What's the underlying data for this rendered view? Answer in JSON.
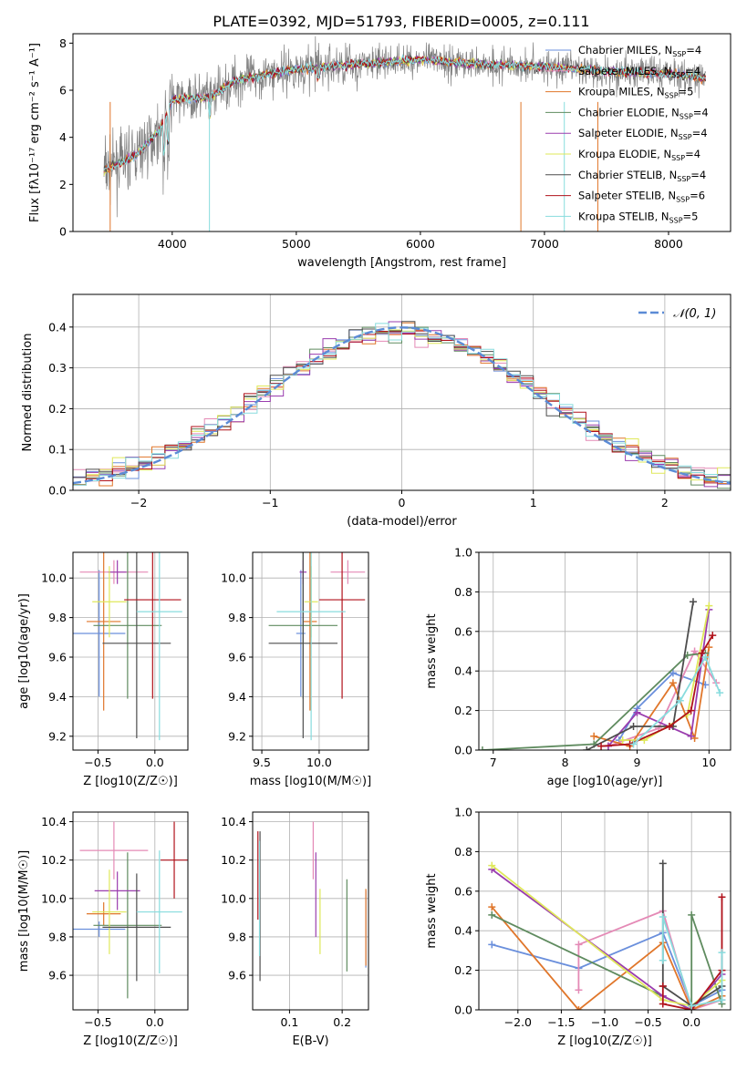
{
  "palette": {
    "Chabrier MILES": "#6a8fdc",
    "Salpeter MILES": "#e48ab6",
    "Kroupa MILES": "#e0762a",
    "Chabrier ELODIE": "#5f8b5f",
    "Salpeter ELODIE": "#9a3dae",
    "Kroupa ELODIE": "#dfe85a",
    "Chabrier STELIB": "#4d4d4d",
    "Salpeter STELIB": "#b0121b",
    "Kroupa STELIB": "#88dcde",
    "data_gray": "#808080",
    "normal_curve": "#5b8bd6"
  },
  "chart_data": [
    {
      "id": "spectrum",
      "type": "line",
      "title": "PLATE=0392, MJD=51793, FIBERID=0005, z=0.111",
      "xlabel": "wavelength [Angstrom, rest frame]",
      "ylabel": "Flux [fλ10⁻¹⁷ erg cm⁻² s⁻¹ A⁻¹]",
      "xlim": [
        3200,
        8500
      ],
      "ylim": [
        0,
        8.4
      ],
      "xticks": [
        4000,
        5000,
        6000,
        7000,
        8000
      ],
      "yticks": [
        0,
        2,
        4,
        6,
        8
      ],
      "x_range_data": [
        3450,
        8300
      ],
      "continuum": [
        [
          3450,
          2.6
        ],
        [
          3700,
          3.2
        ],
        [
          3900,
          4.3
        ],
        [
          4000,
          5.6
        ],
        [
          4300,
          5.7
        ],
        [
          4500,
          6.4
        ],
        [
          5000,
          6.9
        ],
        [
          5500,
          7.1
        ],
        [
          6000,
          7.3
        ],
        [
          6500,
          7.1
        ],
        [
          7000,
          7.0
        ],
        [
          7500,
          6.8
        ],
        [
          8000,
          6.7
        ],
        [
          8300,
          6.5
        ]
      ],
      "legend": [
        "Chabrier MILES, N_SSP=4",
        "Salpeter MILES, N_SSP=4",
        "Kroupa MILES, N_SSP=5",
        "Chabrier ELODIE, N_SSP=4",
        "Salpeter ELODIE, N_SSP=4",
        "Kroupa ELODIE, N_SSP=4",
        "Chabrier STELIB, N_SSP=4",
        "Salpeter STELIB, N_SSP=6",
        "Kroupa STELIB, N_SSP=5"
      ],
      "legend_placement": "upper right",
      "grid": false
    },
    {
      "id": "residuals",
      "type": "area",
      "xlabel": "(data-model)/error",
      "ylabel": "Normed distribution",
      "xlim": [
        -2.5,
        2.5
      ],
      "ylim": [
        0,
        0.48
      ],
      "xticks": [
        -2,
        -1,
        0,
        1,
        2
      ],
      "yticks": [
        0.0,
        0.1,
        0.2,
        0.3,
        0.4
      ],
      "bin_width": 0.1,
      "legend": [
        "𝒩(0, 1)"
      ],
      "legend_placement": "upper right",
      "grid": true
    },
    {
      "id": "age_vs_Z",
      "type": "scatter",
      "xlabel": "Z [log10(Z/Z☉)]",
      "ylabel": "age  [log10(age/yr)]",
      "xlim": [
        -0.72,
        0.29
      ],
      "ylim": [
        9.13,
        10.13
      ],
      "xticks": [
        -0.5,
        0.0
      ],
      "yticks": [
        9.2,
        9.4,
        9.6,
        9.8,
        10.0
      ],
      "points": [
        {
          "model": "Chabrier MILES",
          "x": -0.49,
          "y": 9.72,
          "xerr": 0.23,
          "yerr": 0.32
        },
        {
          "model": "Salpeter MILES",
          "x": -0.36,
          "y": 10.03,
          "xerr": 0.3,
          "yerr": 0.06
        },
        {
          "model": "Kroupa MILES",
          "x": -0.45,
          "y": 9.78,
          "xerr": 0.15,
          "yerr": 0.45
        },
        {
          "model": "Chabrier ELODIE",
          "x": -0.24,
          "y": 9.76,
          "xerr": 0.3,
          "yerr": 0.37
        },
        {
          "model": "Salpeter ELODIE",
          "x": -0.33,
          "y": 10.03,
          "xerr": 0.08,
          "yerr": 0.06
        },
        {
          "model": "Kroupa ELODIE",
          "x": -0.4,
          "y": 9.88,
          "xerr": 0.15,
          "yerr": 0.18
        },
        {
          "model": "Chabrier STELIB",
          "x": -0.16,
          "y": 9.67,
          "xerr": 0.3,
          "yerr": 0.48
        },
        {
          "model": "Salpeter STELIB",
          "x": -0.02,
          "y": 9.89,
          "xerr": 0.25,
          "yerr": 0.5
        },
        {
          "model": "Kroupa STELIB",
          "x": 0.04,
          "y": 9.83,
          "xerr": 0.2,
          "yerr": 0.65
        }
      ],
      "grid": true
    },
    {
      "id": "age_vs_mass",
      "type": "scatter",
      "xlabel": "mass [log10(M/M☉)]",
      "ylabel": "",
      "xlim": [
        9.42,
        10.43
      ],
      "ylim": [
        9.13,
        10.13
      ],
      "xticks": [
        9.5,
        10.0
      ],
      "yticks": [
        9.2,
        9.4,
        9.6,
        9.8,
        10.0
      ],
      "points": [
        {
          "model": "Chabrier MILES",
          "x": 9.84,
          "y": 9.72,
          "xerr": 0.04,
          "yerr": 0.32
        },
        {
          "model": "Salpeter MILES",
          "x": 10.25,
          "y": 10.03,
          "xerr": 0.15,
          "yerr": 0.06
        },
        {
          "model": "Kroupa MILES",
          "x": 9.92,
          "y": 9.78,
          "xerr": 0.06,
          "yerr": 0.45
        },
        {
          "model": "Chabrier ELODIE",
          "x": 9.86,
          "y": 9.76,
          "xerr": 0.3,
          "yerr": 0.37
        },
        {
          "model": "Salpeter ELODIE",
          "x": 9.86,
          "y": 10.03,
          "xerr": 0.03,
          "yerr": 0.06
        },
        {
          "model": "Kroupa ELODIE",
          "x": 9.93,
          "y": 9.88,
          "xerr": 0.06,
          "yerr": 0.18
        },
        {
          "model": "Chabrier STELIB",
          "x": 9.86,
          "y": 9.67,
          "xerr": 0.3,
          "yerr": 0.48
        },
        {
          "model": "Salpeter STELIB",
          "x": 10.2,
          "y": 9.89,
          "xerr": 0.2,
          "yerr": 0.5
        },
        {
          "model": "Kroupa STELIB",
          "x": 9.93,
          "y": 9.83,
          "xerr": 0.3,
          "yerr": 0.65
        }
      ],
      "grid": true
    },
    {
      "id": "massweight_vs_age",
      "type": "line",
      "xlabel": "age  [log10(age/yr)]",
      "ylabel": "mass weight",
      "xlim": [
        6.8,
        10.3
      ],
      "ylim": [
        0,
        1.0
      ],
      "xticks": [
        7,
        8,
        9,
        10
      ],
      "yticks": [
        0.0,
        0.2,
        0.4,
        0.6,
        0.8,
        1.0
      ],
      "series": [
        {
          "model": "Chabrier MILES",
          "x": [
            8.75,
            9.0,
            9.5,
            9.95
          ],
          "y": [
            0.05,
            0.21,
            0.39,
            0.33
          ]
        },
        {
          "model": "Salpeter MILES",
          "x": [
            8.6,
            9.3,
            9.8,
            10.1
          ],
          "y": [
            0.02,
            0.11,
            0.5,
            0.34
          ]
        },
        {
          "model": "Kroupa MILES",
          "x": [
            8.4,
            8.9,
            9.5,
            9.8,
            10.0
          ],
          "y": [
            0.07,
            0.02,
            0.34,
            0.06,
            0.52
          ]
        },
        {
          "model": "Chabrier ELODIE",
          "x": [
            6.85,
            8.4,
            9.7,
            9.95
          ],
          "y": [
            0.0,
            0.03,
            0.48,
            0.49
          ]
        },
        {
          "model": "Salpeter ELODIE",
          "x": [
            8.6,
            9.0,
            9.75,
            10.0
          ],
          "y": [
            0.02,
            0.19,
            0.07,
            0.71
          ]
        },
        {
          "model": "Kroupa ELODIE",
          "x": [
            8.8,
            9.1,
            9.7,
            10.0
          ],
          "y": [
            0.05,
            0.05,
            0.18,
            0.73
          ]
        },
        {
          "model": "Chabrier STELIB",
          "x": [
            8.3,
            8.95,
            9.5,
            9.78
          ],
          "y": [
            0.0,
            0.12,
            0.12,
            0.75
          ]
        },
        {
          "model": "Salpeter STELIB",
          "x": [
            8.5,
            8.9,
            9.45,
            9.75,
            9.9,
            10.05
          ],
          "y": [
            0.02,
            0.03,
            0.12,
            0.2,
            0.49,
            0.58
          ]
        },
        {
          "model": "Kroupa STELIB",
          "x": [
            8.95,
            9.6,
            9.95,
            10.15
          ],
          "y": [
            0.03,
            0.25,
            0.47,
            0.29
          ]
        }
      ],
      "grid": true
    },
    {
      "id": "mass_vs_Z",
      "type": "scatter",
      "xlabel": "Z [log10(Z/Z☉)]",
      "ylabel": "mass [log10(M/M☉)]",
      "xlim": [
        -0.72,
        0.29
      ],
      "ylim": [
        9.42,
        10.45
      ],
      "xticks": [
        -0.5,
        0.0
      ],
      "yticks": [
        9.6,
        9.8,
        10.0,
        10.2,
        10.4
      ],
      "points": [
        {
          "model": "Chabrier MILES",
          "x": -0.49,
          "y": 9.84,
          "xerr": 0.23,
          "yerr": 0.04
        },
        {
          "model": "Salpeter MILES",
          "x": -0.36,
          "y": 10.25,
          "xerr": 0.3,
          "yerr": 0.15
        },
        {
          "model": "Kroupa MILES",
          "x": -0.45,
          "y": 9.92,
          "xerr": 0.15,
          "yerr": 0.06
        },
        {
          "model": "Chabrier ELODIE",
          "x": -0.24,
          "y": 9.86,
          "xerr": 0.3,
          "yerr": 0.38
        },
        {
          "model": "Salpeter ELODIE",
          "x": -0.33,
          "y": 10.04,
          "xerr": 0.2,
          "yerr": 0.1
        },
        {
          "model": "Kroupa ELODIE",
          "x": -0.4,
          "y": 9.93,
          "xerr": 0.15,
          "yerr": 0.22
        },
        {
          "model": "Chabrier STELIB",
          "x": -0.16,
          "y": 9.85,
          "xerr": 0.3,
          "yerr": 0.28
        },
        {
          "model": "Salpeter STELIB",
          "x": 0.17,
          "y": 10.2,
          "xerr": 0.12,
          "yerr": 0.2
        },
        {
          "model": "Kroupa STELIB",
          "x": 0.04,
          "y": 9.93,
          "xerr": 0.2,
          "yerr": 0.32
        }
      ],
      "grid": true
    },
    {
      "id": "mass_vs_ebv",
      "type": "scatter",
      "xlabel": "E(B-V)",
      "ylabel": "",
      "xlim": [
        0.03,
        0.25
      ],
      "ylim": [
        9.42,
        10.45
      ],
      "xticks": [
        0.1,
        0.2
      ],
      "yticks": [
        9.6,
        9.8,
        10.0,
        10.2,
        10.4
      ],
      "points": [
        {
          "model": "Chabrier MILES",
          "x": 0.245,
          "y": 9.84,
          "xerr": 0,
          "yerr": 0.2
        },
        {
          "model": "Salpeter MILES",
          "x": 0.145,
          "y": 10.25,
          "xerr": 0,
          "yerr": 0.15
        },
        {
          "model": "Kroupa MILES",
          "x": 0.245,
          "y": 9.85,
          "xerr": 0,
          "yerr": 0.2
        },
        {
          "model": "Chabrier ELODIE",
          "x": 0.209,
          "y": 9.86,
          "xerr": 0,
          "yerr": 0.24
        },
        {
          "model": "Salpeter ELODIE",
          "x": 0.15,
          "y": 10.02,
          "xerr": 0,
          "yerr": 0.22
        },
        {
          "model": "Kroupa ELODIE",
          "x": 0.158,
          "y": 9.88,
          "xerr": 0,
          "yerr": 0.17
        },
        {
          "model": "Chabrier STELIB",
          "x": 0.044,
          "y": 9.96,
          "xerr": 0,
          "yerr": 0.39
        },
        {
          "model": "Salpeter STELIB",
          "x": 0.04,
          "y": 10.12,
          "xerr": 0,
          "yerr": 0.23
        },
        {
          "model": "Kroupa STELIB",
          "x": 0.043,
          "y": 10.0,
          "xerr": 0,
          "yerr": 0.3
        }
      ],
      "grid": true
    },
    {
      "id": "massweight_vs_Z",
      "type": "line",
      "xlabel": "Z [log10(Z/Z☉)]",
      "ylabel": "mass weight",
      "xlim": [
        -2.45,
        0.45
      ],
      "ylim": [
        0,
        1.0
      ],
      "xticks": [
        -2.0,
        -1.5,
        -1.0,
        -0.5,
        0.0
      ],
      "yticks": [
        0.0,
        0.2,
        0.4,
        0.6,
        0.8,
        1.0
      ],
      "series": [
        {
          "model": "Chabrier MILES",
          "x": [
            -2.3,
            -1.3,
            -0.33,
            0.0,
            0.35
          ],
          "y": [
            0.33,
            0.21,
            0.39,
            0.02,
            0.1
          ]
        },
        {
          "model": "Salpeter MILES",
          "x": [
            -1.3,
            -1.3,
            -0.33,
            0.0,
            0.35
          ],
          "y": [
            0.1,
            0.33,
            0.5,
            0.0,
            0.05
          ]
        },
        {
          "model": "Kroupa MILES",
          "x": [
            -2.3,
            -1.3,
            -0.33,
            0.0,
            0.35
          ],
          "y": [
            0.52,
            0.0,
            0.34,
            0.0,
            0.07
          ]
        },
        {
          "model": "Chabrier ELODIE",
          "x": [
            -2.3,
            0.0,
            0.0,
            0.35
          ],
          "y": [
            0.48,
            0.0,
            0.48,
            0.03
          ]
        },
        {
          "model": "Salpeter ELODIE",
          "x": [
            -2.3,
            -0.33,
            0.0,
            0.35
          ],
          "y": [
            0.71,
            0.07,
            0.0,
            0.18
          ]
        },
        {
          "model": "Kroupa ELODIE",
          "x": [
            -2.3,
            -0.33,
            0.0,
            0.35
          ],
          "y": [
            0.73,
            0.05,
            0.02,
            0.15
          ]
        },
        {
          "model": "Chabrier STELIB",
          "x": [
            -0.33,
            -0.33,
            0.0,
            0.35
          ],
          "y": [
            0.74,
            0.12,
            0.02,
            0.12
          ]
        },
        {
          "model": "Salpeter STELIB",
          "x": [
            -0.33,
            -0.33,
            0.0,
            0.35,
            0.35
          ],
          "y": [
            0.12,
            0.03,
            0.0,
            0.2,
            0.57
          ]
        },
        {
          "model": "Kroupa STELIB",
          "x": [
            -0.33,
            -0.33,
            0.0,
            0.35,
            0.35
          ],
          "y": [
            0.25,
            0.47,
            0.02,
            0.05,
            0.29
          ]
        }
      ],
      "grid": true
    }
  ]
}
